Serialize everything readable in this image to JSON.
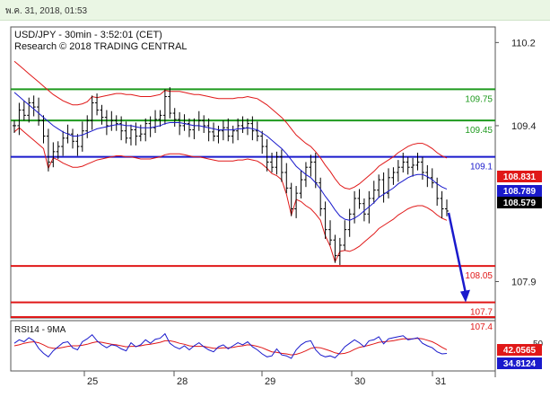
{
  "timestamp": "พ.ค. 31, 2018, 01:53",
  "chart_data": {
    "type": "line",
    "title": "USD/JPY - 30min - 3:52:01 (CET)",
    "subtitle": "Research © 2018 TRADING CENTRAL",
    "price_axis": {
      "ticks": [
        "110.2",
        "109.4",
        "107.9"
      ],
      "ylim": [
        107.55,
        110.35
      ]
    },
    "x_ticks": [
      "25",
      "28",
      "29",
      "30",
      "31"
    ],
    "levels": [
      {
        "label": "109.75",
        "value": 109.75,
        "color": "#1e9a1e"
      },
      {
        "label": "109.45",
        "value": 109.45,
        "color": "#1e9a1e"
      },
      {
        "label": "109.1",
        "value": 109.1,
        "color": "#1a1acc"
      },
      {
        "label": "108.05",
        "value": 108.05,
        "color": "#e01818"
      },
      {
        "label": "107.7",
        "value": 107.7,
        "color": "#e01818"
      },
      {
        "label": "107.4",
        "value": 107.4,
        "color": "#e01818"
      }
    ],
    "price_badges": [
      {
        "label": "108.831",
        "color": "#e01818"
      },
      {
        "label": "108.789",
        "color": "#1a1acc"
      },
      {
        "label": "108.579",
        "color": "#000000"
      }
    ],
    "price_series": [
      109.4,
      109.55,
      109.5,
      109.62,
      109.58,
      109.45,
      109.3,
      109.05,
      109.15,
      109.2,
      109.28,
      109.32,
      109.25,
      109.2,
      109.35,
      109.45,
      109.62,
      109.55,
      109.48,
      109.4,
      109.45,
      109.42,
      109.35,
      109.28,
      109.36,
      109.3,
      109.32,
      109.42,
      109.38,
      109.46,
      109.5,
      109.68,
      109.52,
      109.46,
      109.4,
      109.42,
      109.36,
      109.4,
      109.45,
      109.4,
      109.34,
      109.3,
      109.35,
      109.38,
      109.3,
      109.35,
      109.4,
      109.38,
      109.42,
      109.35,
      109.3,
      109.2,
      109.05,
      109.0,
      109.1,
      108.95,
      108.8,
      108.6,
      108.75,
      108.88,
      109.0,
      109.05,
      108.85,
      108.6,
      108.4,
      108.3,
      108.15,
      108.25,
      108.4,
      108.55,
      108.7,
      108.65,
      108.55,
      108.7,
      108.78,
      108.88,
      108.75,
      108.9,
      108.95,
      109.0,
      109.05,
      109.0,
      109.02,
      109.05,
      108.95,
      108.9,
      108.85,
      108.7,
      108.6,
      108.579
    ],
    "ma_series": [
      109.72,
      109.68,
      109.64,
      109.6,
      109.56,
      109.52,
      109.48,
      109.44,
      109.4,
      109.37,
      109.34,
      109.32,
      109.3,
      109.3,
      109.31,
      109.33,
      109.35,
      109.37,
      109.38,
      109.39,
      109.4,
      109.41,
      109.41,
      109.4,
      109.4,
      109.39,
      109.38,
      109.38,
      109.38,
      109.39,
      109.4,
      109.42,
      109.43,
      109.43,
      109.43,
      109.42,
      109.41,
      109.4,
      109.4,
      109.39,
      109.38,
      109.37,
      109.36,
      109.36,
      109.36,
      109.36,
      109.37,
      109.37,
      109.38,
      109.37,
      109.36,
      109.33,
      109.3,
      109.26,
      109.22,
      109.18,
      109.13,
      109.07,
      109.01,
      108.97,
      108.93,
      108.9,
      108.85,
      108.79,
      108.72,
      108.66,
      108.59,
      108.53,
      108.5,
      108.49,
      108.51,
      108.54,
      108.58,
      108.62,
      108.66,
      108.71,
      108.74,
      108.77,
      108.8,
      108.84,
      108.87,
      108.9,
      108.92,
      108.93,
      108.93,
      108.91,
      108.88,
      108.84,
      108.81,
      108.789
    ],
    "forecast": {
      "from": 108.579,
      "to": 107.7
    },
    "rsi": {
      "label": "RSI14 - 9MA",
      "ylim": [
        0,
        100
      ],
      "badges": [
        {
          "label": "42.0565",
          "color": "#e01818"
        },
        {
          "label": "34.8124",
          "color": "#1a1acc"
        }
      ],
      "partial_tick": "50",
      "rsi_series": [
        55,
        62,
        58,
        66,
        60,
        45,
        35,
        28,
        40,
        48,
        56,
        58,
        46,
        42,
        58,
        64,
        72,
        60,
        52,
        46,
        52,
        50,
        44,
        40,
        56,
        48,
        52,
        62,
        55,
        63,
        65,
        74,
        55,
        48,
        44,
        50,
        42,
        50,
        56,
        48,
        42,
        38,
        48,
        52,
        44,
        50,
        56,
        52,
        58,
        48,
        42,
        34,
        28,
        30,
        44,
        32,
        30,
        25,
        42,
        52,
        58,
        60,
        42,
        32,
        28,
        30,
        26,
        36,
        48,
        55,
        62,
        56,
        48,
        60,
        62,
        68,
        54,
        64,
        66,
        68,
        70,
        62,
        64,
        66,
        55,
        50,
        46,
        38,
        34,
        34.81
      ],
      "ma_series": [
        50,
        52,
        55,
        57,
        58,
        56,
        52,
        47,
        45,
        45,
        47,
        49,
        50,
        50,
        51,
        53,
        56,
        58,
        57,
        55,
        53,
        52,
        50,
        48,
        49,
        49,
        50,
        52,
        53,
        55,
        57,
        60,
        60,
        58,
        55,
        53,
        50,
        49,
        49,
        49,
        47,
        45,
        45,
        46,
        46,
        47,
        49,
        50,
        52,
        51,
        49,
        46,
        42,
        38,
        37,
        35,
        34,
        32,
        33,
        36,
        40,
        45,
        47,
        46,
        43,
        40,
        36,
        34,
        35,
        38,
        43,
        47,
        49,
        51,
        54,
        57,
        58,
        59,
        60,
        62,
        64,
        64,
        64,
        65,
        64,
        61,
        58,
        53,
        47,
        42.06
      ]
    }
  }
}
